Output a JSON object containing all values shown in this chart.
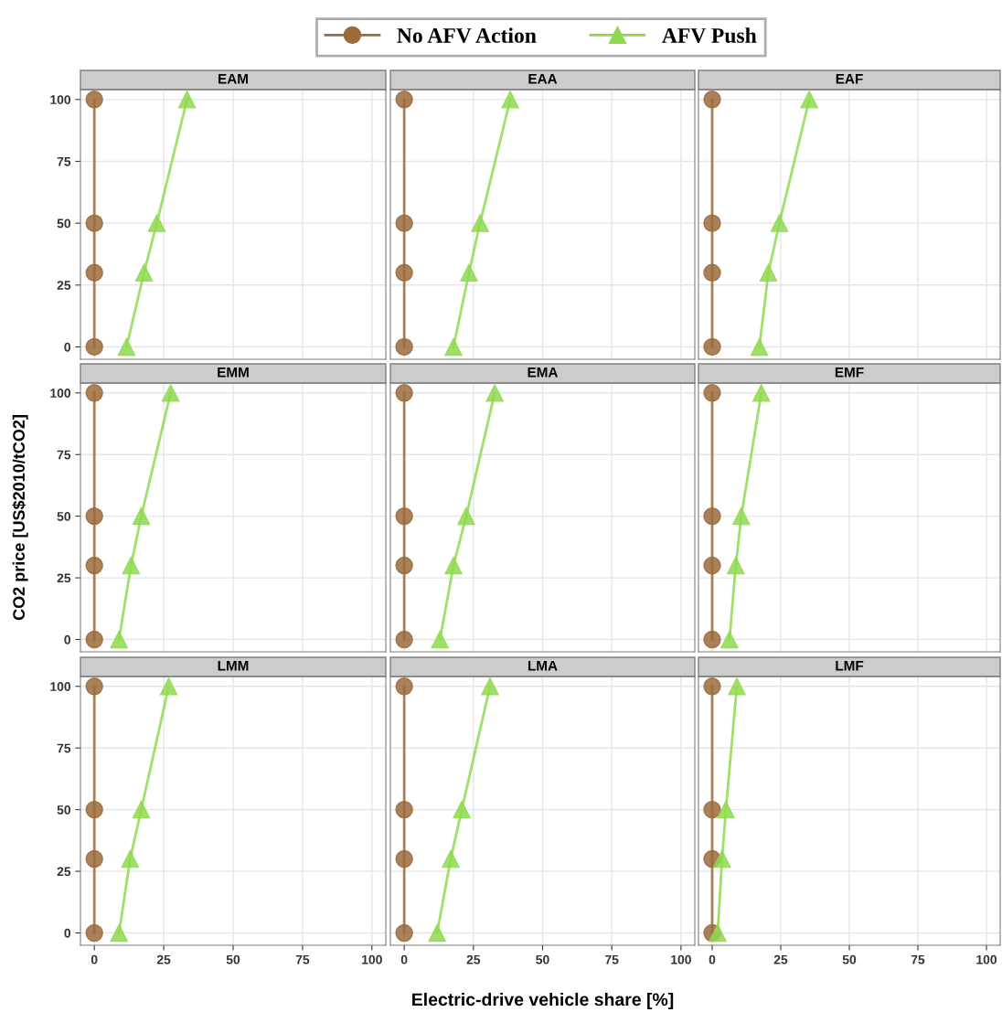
{
  "chart_data": [
    {
      "type": "line",
      "title": "EAM",
      "legend": "top",
      "tick_labels": "y",
      "xlim": [
        -5,
        105
      ],
      "ylim": [
        -5,
        104
      ],
      "xticks": [
        0,
        25,
        50,
        75,
        100
      ],
      "yticks": [
        0,
        25,
        50,
        75,
        100
      ],
      "grid": true,
      "series": [
        {
          "name": "No AFV Action",
          "color": "#9c6b3c",
          "marker": "circle",
          "x": [
            0,
            0,
            0,
            0
          ],
          "values": [
            0,
            30,
            50,
            100
          ]
        },
        {
          "name": "AFV Push",
          "color": "#8fd94f",
          "marker": "triangle",
          "x": [
            11.6,
            17.9,
            22.5,
            33.4
          ],
          "values": [
            0,
            30,
            50,
            100
          ]
        }
      ]
    },
    {
      "type": "line",
      "title": "EAA",
      "tick_labels": false,
      "xlim": [
        -5,
        105
      ],
      "ylim": [
        -5,
        104
      ],
      "xticks": [
        0,
        25,
        50,
        75,
        100
      ],
      "yticks": [
        0,
        25,
        50,
        75,
        100
      ],
      "grid": true,
      "series": [
        {
          "color": "#9c6b3c",
          "marker": "circle",
          "x": [
            0,
            0,
            0,
            0
          ],
          "values": [
            0,
            30,
            50,
            100
          ]
        },
        {
          "color": "#8fd94f",
          "marker": "triangle",
          "x": [
            17.8,
            23.4,
            27.4,
            38.3
          ],
          "values": [
            0,
            30,
            50,
            100
          ]
        }
      ]
    },
    {
      "type": "line",
      "title": "EAF",
      "tick_labels": false,
      "xlim": [
        -5,
        105
      ],
      "ylim": [
        -5,
        104
      ],
      "xticks": [
        0,
        25,
        50,
        75,
        100
      ],
      "yticks": [
        0,
        25,
        50,
        75,
        100
      ],
      "grid": true,
      "series": [
        {
          "color": "#9c6b3c",
          "marker": "circle",
          "x": [
            0,
            0,
            0,
            0
          ],
          "values": [
            0,
            30,
            50,
            100
          ]
        },
        {
          "color": "#8fd94f",
          "marker": "triangle",
          "x": [
            17.2,
            20.5,
            24.5,
            35.4
          ],
          "values": [
            0,
            30,
            50,
            100
          ]
        }
      ]
    },
    {
      "type": "line",
      "title": "EMM",
      "ylabel": "CO2 price [US$2010/tCO2]",
      "tick_labels": "y",
      "xlim": [
        -5,
        105
      ],
      "ylim": [
        -5,
        104
      ],
      "xticks": [
        0,
        25,
        50,
        75,
        100
      ],
      "yticks": [
        0,
        25,
        50,
        75,
        100
      ],
      "grid": true,
      "series": [
        {
          "color": "#9c6b3c",
          "marker": "circle",
          "x": [
            0,
            0,
            0,
            0
          ],
          "values": [
            0,
            30,
            50,
            100
          ]
        },
        {
          "color": "#8fd94f",
          "marker": "triangle",
          "x": [
            8.9,
            13.2,
            16.9,
            27.5
          ],
          "values": [
            0,
            30,
            50,
            100
          ]
        }
      ]
    },
    {
      "type": "line",
      "title": "EMA",
      "tick_labels": false,
      "xlim": [
        -5,
        105
      ],
      "ylim": [
        -5,
        104
      ],
      "xticks": [
        0,
        25,
        50,
        75,
        100
      ],
      "yticks": [
        0,
        25,
        50,
        75,
        100
      ],
      "grid": true,
      "series": [
        {
          "color": "#9c6b3c",
          "marker": "circle",
          "x": [
            0,
            0,
            0,
            0
          ],
          "values": [
            0,
            30,
            50,
            100
          ]
        },
        {
          "color": "#8fd94f",
          "marker": "triangle",
          "x": [
            12.9,
            17.8,
            22.4,
            32.7
          ],
          "values": [
            0,
            30,
            50,
            100
          ]
        }
      ]
    },
    {
      "type": "line",
      "title": "EMF",
      "tick_labels": false,
      "xlim": [
        -5,
        105
      ],
      "ylim": [
        -5,
        104
      ],
      "xticks": [
        0,
        25,
        50,
        75,
        100
      ],
      "yticks": [
        0,
        25,
        50,
        75,
        100
      ],
      "grid": true,
      "series": [
        {
          "color": "#9c6b3c",
          "marker": "circle",
          "x": [
            0,
            0,
            0,
            0
          ],
          "values": [
            0,
            30,
            50,
            100
          ]
        },
        {
          "color": "#8fd94f",
          "marker": "triangle",
          "x": [
            6.3,
            8.6,
            10.6,
            17.9
          ],
          "values": [
            0,
            30,
            50,
            100
          ]
        }
      ]
    },
    {
      "type": "line",
      "title": "LMM",
      "xlim": [
        -5,
        105
      ],
      "ylim": [
        -5,
        104
      ],
      "xticks": [
        0,
        25,
        50,
        75,
        100
      ],
      "yticks": [
        0,
        25,
        50,
        75,
        100
      ],
      "grid": true,
      "series": [
        {
          "color": "#9c6b3c",
          "marker": "circle",
          "x": [
            0,
            0,
            0,
            0
          ],
          "values": [
            0,
            30,
            50,
            100
          ]
        },
        {
          "color": "#8fd94f",
          "marker": "triangle",
          "x": [
            8.9,
            12.9,
            16.9,
            26.8
          ],
          "values": [
            0,
            30,
            50,
            100
          ]
        }
      ]
    },
    {
      "type": "line",
      "title": "LMA",
      "xlabel": "Electric-drive vehicle share [%]",
      "tick_labels": "x",
      "xlim": [
        -5,
        105
      ],
      "ylim": [
        -5,
        104
      ],
      "xticks": [
        0,
        25,
        50,
        75,
        100
      ],
      "yticks": [
        0,
        25,
        50,
        75,
        100
      ],
      "grid": true,
      "series": [
        {
          "color": "#9c6b3c",
          "marker": "circle",
          "x": [
            0,
            0,
            0,
            0
          ],
          "values": [
            0,
            30,
            50,
            100
          ]
        },
        {
          "color": "#8fd94f",
          "marker": "triangle",
          "x": [
            11.9,
            16.8,
            20.8,
            31.0
          ],
          "values": [
            0,
            30,
            50,
            100
          ]
        }
      ]
    },
    {
      "type": "line",
      "title": "LMF",
      "tick_labels": "x",
      "xlim": [
        -5,
        105
      ],
      "ylim": [
        -5,
        104
      ],
      "xticks": [
        0,
        25,
        50,
        75,
        100
      ],
      "yticks": [
        0,
        25,
        50,
        75,
        100
      ],
      "grid": true,
      "series": [
        {
          "color": "#9c6b3c",
          "marker": "circle",
          "x": [
            0,
            0,
            0,
            0
          ],
          "values": [
            0,
            30,
            50,
            100
          ]
        },
        {
          "color": "#8fd94f",
          "marker": "triangle",
          "x": [
            2.0,
            3.6,
            5.0,
            9.0
          ],
          "values": [
            0,
            30,
            50,
            100
          ]
        }
      ]
    }
  ]
}
